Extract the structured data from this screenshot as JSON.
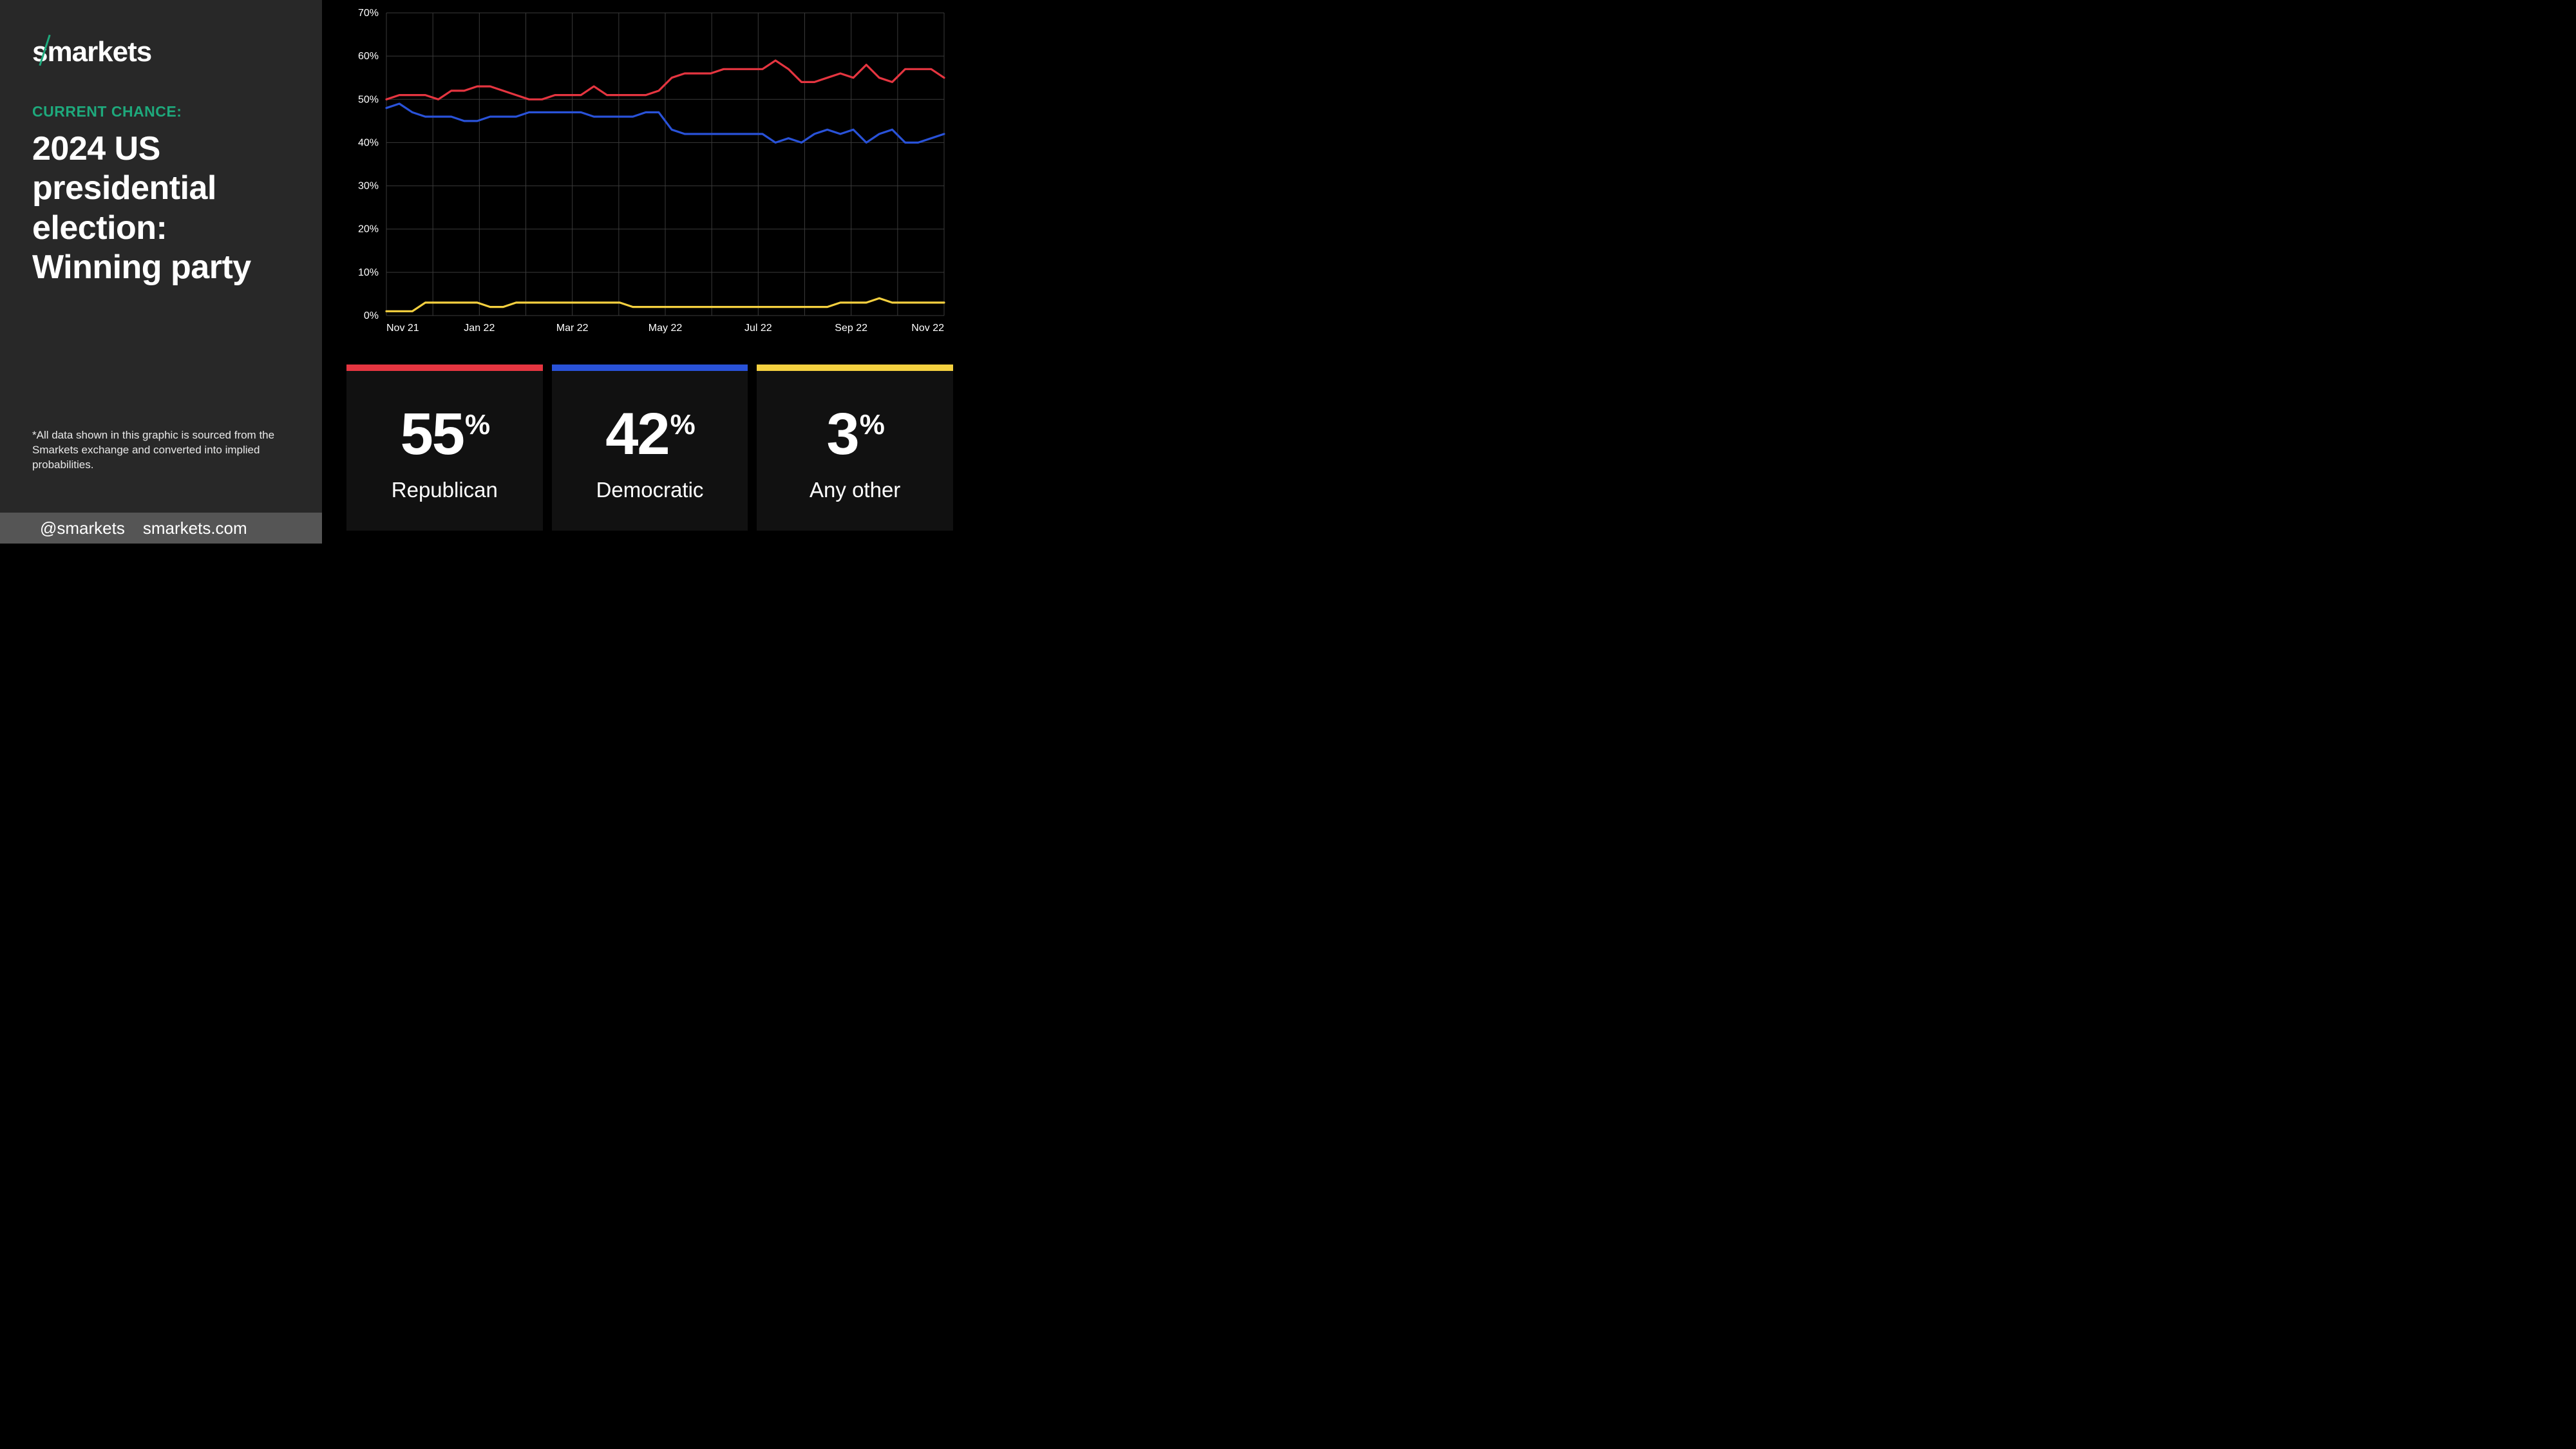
{
  "brand": {
    "name": "smarkets",
    "accent": "#1ea97c"
  },
  "left_panel": {
    "subhead": "CURRENT CHANCE:",
    "subhead_color": "#1ea97c",
    "title": "2024 US presidential election: Winning party",
    "disclaimer": "*All data shown in this graphic is sourced from the Smarkets exchange and converted into implied probabilities.",
    "background": "#282828"
  },
  "footer": {
    "handle": "@smarkets",
    "url": "smarkets.com",
    "background": "#555555"
  },
  "chart": {
    "type": "line",
    "background": "#000000",
    "grid_color": "#3a3a3a",
    "text_color": "#ffffff",
    "font_size": 16,
    "ylim": [
      0,
      70
    ],
    "ytick_step": 10,
    "ytick_suffix": "%",
    "xticks": [
      "Nov 21",
      "Jan 22",
      "Mar 22",
      "May 22",
      "Jul 22",
      "Sep 22",
      "Nov 22"
    ],
    "x_minor_per_major": 2,
    "line_width": 3.2,
    "series": [
      {
        "name": "Republican",
        "color": "#e53540",
        "values": [
          50,
          51,
          51,
          51,
          50,
          52,
          52,
          53,
          53,
          52,
          51,
          50,
          50,
          51,
          51,
          51,
          53,
          51,
          51,
          51,
          51,
          52,
          55,
          56,
          56,
          56,
          57,
          57,
          57,
          57,
          59,
          57,
          54,
          54,
          55,
          56,
          55,
          58,
          55,
          54,
          57,
          57,
          57,
          55
        ]
      },
      {
        "name": "Democratic",
        "color": "#2952d8",
        "values": [
          48,
          49,
          47,
          46,
          46,
          46,
          45,
          45,
          46,
          46,
          46,
          47,
          47,
          47,
          47,
          47,
          46,
          46,
          46,
          46,
          47,
          47,
          43,
          42,
          42,
          42,
          42,
          42,
          42,
          42,
          40,
          41,
          40,
          42,
          43,
          42,
          43,
          40,
          42,
          43,
          40,
          40,
          41,
          42
        ]
      },
      {
        "name": "Any other",
        "color": "#f4d03f",
        "values": [
          1,
          1,
          1,
          3,
          3,
          3,
          3,
          3,
          2,
          2,
          3,
          3,
          3,
          3,
          3,
          3,
          3,
          3,
          3,
          2,
          2,
          2,
          2,
          2,
          2,
          2,
          2,
          2,
          2,
          2,
          2,
          2,
          2,
          2,
          2,
          3,
          3,
          3,
          4,
          3,
          3,
          3,
          3,
          3
        ]
      }
    ]
  },
  "cards": [
    {
      "value": "55",
      "suffix": "%",
      "label": "Republican",
      "color": "#e53540"
    },
    {
      "value": "42",
      "suffix": "%",
      "label": "Democratic",
      "color": "#2952d8"
    },
    {
      "value": "3",
      "suffix": "%",
      "label": "Any other",
      "color": "#f4d03f"
    }
  ]
}
